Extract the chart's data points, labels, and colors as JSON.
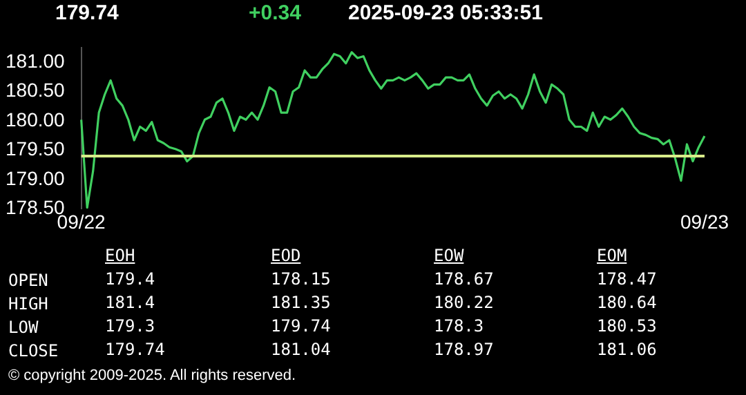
{
  "chart_data": [
    {
      "type": "line",
      "title": "179.74",
      "subtitle": "+0.34",
      "annotations": [
        "2025-09-23 05:33:51",
        "© copyright 2009-2025. All rights reserved."
      ],
      "categories": [
        "09/22",
        null,
        null,
        null,
        null,
        null,
        null,
        null,
        null,
        null,
        null,
        null,
        null,
        null,
        null,
        null,
        null,
        null,
        null,
        null,
        null,
        null,
        null,
        null,
        null,
        null,
        null,
        null,
        null,
        null,
        null,
        null,
        null,
        null,
        null,
        null,
        null,
        null,
        null,
        null,
        null,
        null,
        null,
        null,
        null,
        null,
        null,
        null,
        null,
        null,
        null,
        null,
        null,
        null,
        null,
        null,
        null,
        null,
        null,
        null,
        null,
        null,
        null,
        null,
        null,
        null,
        null,
        null,
        null,
        null,
        null,
        null,
        null,
        null,
        null,
        null,
        null,
        null,
        null,
        null,
        null,
        null,
        null,
        null,
        null,
        null,
        null,
        null,
        null,
        null,
        null,
        null,
        null,
        null,
        null,
        null,
        null,
        null,
        null,
        null,
        null,
        null,
        null,
        null,
        null,
        null,
        "09/23"
      ],
      "series": [
        {
          "color": "#40d060",
          "values": [
            180.02,
            178.52,
            179.14,
            180.14,
            180.45,
            180.69,
            180.38,
            180.26,
            180.02,
            179.67,
            179.9,
            179.83,
            179.98,
            179.67,
            179.62,
            179.55,
            179.52,
            179.48,
            179.31,
            179.4,
            179.79,
            180.02,
            180.07,
            180.31,
            180.38,
            180.14,
            179.83,
            180.07,
            180.02,
            180.14,
            180.02,
            180.26,
            180.57,
            180.5,
            180.14,
            180.14,
            180.5,
            180.57,
            180.86,
            180.74,
            180.74,
            180.88,
            180.98,
            181.14,
            181.1,
            180.98,
            181.17,
            181.07,
            181.1,
            180.86,
            180.69,
            180.55,
            180.69,
            180.69,
            180.74,
            180.69,
            180.74,
            180.81,
            180.69,
            180.55,
            180.62,
            180.62,
            180.74,
            180.74,
            180.69,
            180.69,
            180.79,
            180.55,
            180.38,
            180.26,
            180.43,
            180.5,
            180.38,
            180.45,
            180.38,
            180.21,
            180.45,
            180.79,
            180.5,
            180.31,
            180.62,
            180.55,
            180.45,
            180.02,
            179.9,
            179.9,
            179.83,
            180.14,
            179.9,
            180.07,
            180.02,
            180.1,
            180.21,
            180.07,
            179.9,
            179.79,
            179.76,
            179.71,
            179.69,
            179.6,
            179.67,
            179.36,
            178.98,
            179.6,
            179.31,
            179.55,
            179.74
          ]
        }
      ],
      "ylim": [
        178.5,
        181.25
      ],
      "yticks": [
        {
          "value": 178.5,
          "label": "178.50"
        },
        {
          "value": 179,
          "label": "179.00"
        },
        {
          "value": 179.5,
          "label": "179.50"
        },
        {
          "value": 180,
          "label": "180.00"
        },
        {
          "value": 180.5,
          "label": "180.50"
        },
        {
          "value": 181,
          "label": "181.00"
        }
      ],
      "ref_lines": [
        {
          "axis": "y",
          "value": 179.4,
          "color": "#d8ec8a"
        }
      ],
      "grid": false,
      "legend": false
    },
    {
      "type": "other",
      "categories": [
        "EOH",
        "EOD",
        "EOW",
        "EOM"
      ],
      "y_categories": [
        "OPEN",
        "HIGH",
        "LOW",
        "CLOSE"
      ],
      "cell_labels": [
        [
          "179.4",
          "178.15",
          "178.67",
          "178.47"
        ],
        [
          "181.4",
          "181.35",
          "180.22",
          "180.64"
        ],
        [
          "179.3",
          "179.74",
          "178.3",
          "180.53"
        ],
        [
          "179.74",
          "181.04",
          "178.97",
          "181.06"
        ]
      ]
    }
  ]
}
